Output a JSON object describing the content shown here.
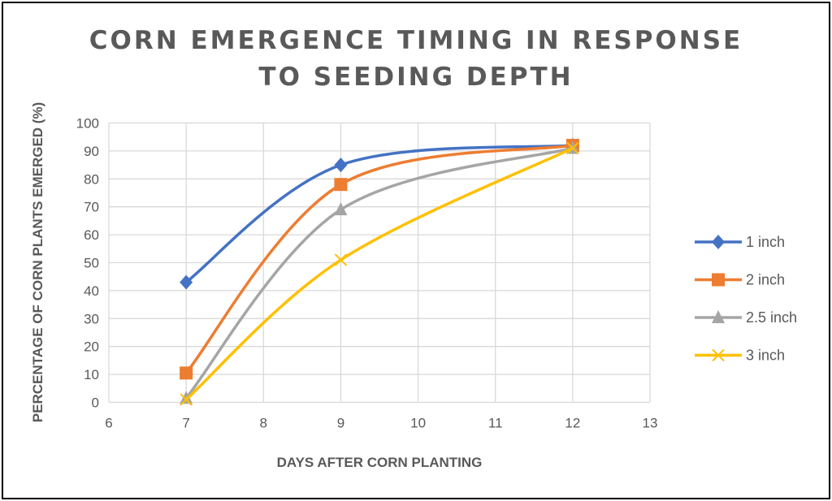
{
  "chart_data": {
    "type": "line",
    "title_lines": [
      "CORN EMERGENCE TIMING IN RESPONSE",
      "TO SEEDING DEPTH"
    ],
    "xlabel": "DAYS AFTER CORN PLANTING",
    "ylabel": "PERCENTAGE OF CORN PLANTS EMERGED (%)",
    "xlim": [
      6,
      13
    ],
    "ylim": [
      0,
      100
    ],
    "x_ticks": [
      6,
      7,
      8,
      9,
      10,
      11,
      12,
      13
    ],
    "y_ticks": [
      0,
      10,
      20,
      30,
      40,
      50,
      60,
      70,
      80,
      90,
      100
    ],
    "grid": true,
    "smoothed": true,
    "legend_position": "right",
    "x": [
      7,
      9,
      12
    ],
    "series": [
      {
        "name": "1 inch",
        "values": [
          43,
          85,
          92
        ],
        "color": "#4472C4",
        "marker": "diamond"
      },
      {
        "name": "2 inch",
        "values": [
          10.5,
          78,
          92
        ],
        "color": "#ED7D31",
        "marker": "square"
      },
      {
        "name": "2.5 inch",
        "values": [
          1.5,
          69,
          91
        ],
        "color": "#A5A5A5",
        "marker": "triangle"
      },
      {
        "name": "3 inch",
        "values": [
          1,
          51,
          91
        ],
        "color": "#FFC000",
        "marker": "x"
      }
    ]
  }
}
